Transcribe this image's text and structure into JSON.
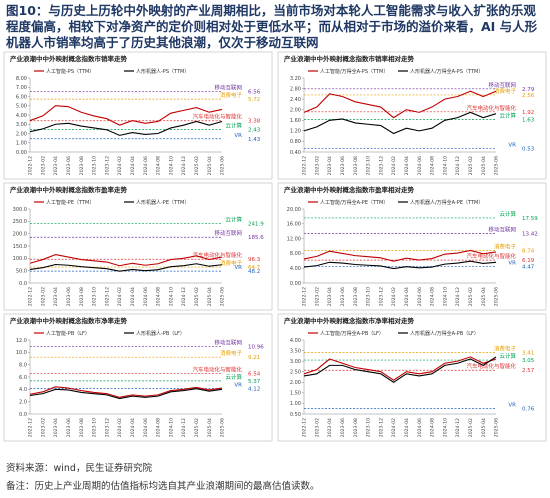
{
  "figure": {
    "title": "图10：与历史上历轮中外映射的产业周期相比，当前市场对本轮人工智能需求与收入扩张的乐观程度偏高，相较下对净资产的定价则相对处于更低水平；而从相对于市场的溢价来看，AI 与人形机器人市销率均高于了历史其他浪潮，仅次于移动互联网",
    "source": "资料来源：wind，民生证券研究院",
    "note": "备注：历史上产业周期的估值指标均选自其产业浪潮期间的最高估值读数。"
  },
  "chart_data": [
    {
      "type": "line",
      "title": "产业浪潮中中外映射概念指数市销率走势",
      "categories": [
        "2022-12",
        "2023-02",
        "2023-04",
        "2023-06",
        "2023-08",
        "2023-10",
        "2023-12",
        "2024-02",
        "2024-04",
        "2024-06",
        "2024-08",
        "2024-10",
        "2024-12",
        "2025-02",
        "2025-04",
        "2025-06"
      ],
      "series": [
        {
          "name": "人工智能-PS（TTM）",
          "color": "#c00000",
          "values": [
            3.4,
            3.9,
            5.0,
            4.9,
            4.3,
            3.9,
            3.6,
            2.9,
            3.4,
            3.1,
            3.3,
            4.2,
            4.5,
            4.8,
            4.3,
            4.6
          ]
        },
        {
          "name": "人形机器人-PS（TTM）",
          "color": "#000000",
          "values": [
            2.2,
            2.5,
            3.0,
            3.1,
            2.8,
            2.6,
            2.4,
            1.8,
            2.1,
            1.9,
            2.0,
            2.6,
            2.9,
            3.3,
            2.9,
            3.3
          ]
        }
      ],
      "ylim": [
        0,
        8
      ],
      "yticks": [
        {
          "value": 0,
          "label": "0.00"
        },
        {
          "value": 1,
          "label": "1.00"
        },
        {
          "value": 2,
          "label": "2.00"
        },
        {
          "value": 3,
          "label": "3.00"
        },
        {
          "value": 4,
          "label": "4.00"
        },
        {
          "value": 5,
          "label": "5.00"
        },
        {
          "value": 6,
          "label": "6.00"
        },
        {
          "value": 7,
          "label": "7.00"
        },
        {
          "value": 8,
          "label": "8.00"
        }
      ],
      "reference_lines": [
        {
          "name": "移动互联网",
          "value": 6.56,
          "color": "#7030a0"
        },
        {
          "name": "消费电子",
          "value": 5.72,
          "color": "#e6a000"
        },
        {
          "name": "汽车电动化与智能化",
          "value": 3.38,
          "color": "#e03030"
        },
        {
          "name": "云计算",
          "value": 2.43,
          "color": "#00a050"
        },
        {
          "name": "VR",
          "value": 1.43,
          "color": "#2060c0"
        }
      ]
    },
    {
      "type": "line",
      "title": "产业浪潮中中外映射概念指数市销率相对走势",
      "categories": [
        "2022-12",
        "2023-02",
        "2023-04",
        "2023-06",
        "2023-08",
        "2023-10",
        "2023-12",
        "2024-02",
        "2024-04",
        "2024-06",
        "2024-08",
        "2024-10",
        "2024-12",
        "2025-02",
        "2025-04",
        "2025-06"
      ],
      "series": [
        {
          "name": "人工智能/万得全A-PS（TTM）",
          "color": "#c00000",
          "values": [
            1.9,
            2.1,
            2.6,
            2.5,
            2.3,
            2.2,
            2.1,
            1.7,
            2.0,
            1.9,
            2.1,
            2.4,
            2.5,
            2.7,
            2.5,
            2.7
          ]
        },
        {
          "name": "人形机器人/万得全A-PS（TTM）",
          "color": "#000000",
          "values": [
            1.2,
            1.35,
            1.6,
            1.65,
            1.5,
            1.45,
            1.4,
            1.1,
            1.3,
            1.2,
            1.3,
            1.6,
            1.7,
            1.9,
            1.7,
            1.85
          ]
        }
      ],
      "ylim": [
        0.4,
        3.2
      ],
      "yticks": [
        {
          "value": 0.4,
          "label": "0.40"
        },
        {
          "value": 0.8,
          "label": "0.80"
        },
        {
          "value": 1.2,
          "label": "1.20"
        },
        {
          "value": 1.6,
          "label": "1.60"
        },
        {
          "value": 2,
          "label": "2.00"
        },
        {
          "value": 2.4,
          "label": "2.40"
        },
        {
          "value": 2.8,
          "label": "2.80"
        },
        {
          "value": 3.2,
          "label": "3.20"
        }
      ],
      "reference_lines": [
        {
          "name": "移动互联网",
          "value": 2.79,
          "color": "#7030a0"
        },
        {
          "name": "消费电子",
          "value": 2.56,
          "color": "#e6a000"
        },
        {
          "name": "汽车电动化与智能化",
          "value": 1.92,
          "color": "#e03030"
        },
        {
          "name": "云计算",
          "value": 1.63,
          "color": "#00a050"
        },
        {
          "name": "VR",
          "value": 0.53,
          "color": "#2060c0"
        }
      ]
    },
    {
      "type": "line",
      "title": "产业浪潮中中外映射概念指数市盈率走势",
      "categories": [
        "2022-12",
        "2023-02",
        "2023-04",
        "2023-06",
        "2023-08",
        "2023-10",
        "2023-12",
        "2024-02",
        "2024-04",
        "2024-06",
        "2024-08",
        "2024-10",
        "2024-12",
        "2025-02",
        "2025-04",
        "2025-06"
      ],
      "series": [
        {
          "name": "人工智能-PE（TTM）",
          "color": "#c00000",
          "values": [
            80,
            95,
            115,
            105,
            95,
            90,
            85,
            70,
            80,
            72,
            78,
            95,
            100,
            110,
            95,
            105
          ]
        },
        {
          "name": "人形机器人-PE（TTM）",
          "color": "#000000",
          "values": [
            55,
            62,
            75,
            72,
            66,
            62,
            58,
            48,
            55,
            50,
            54,
            66,
            70,
            78,
            68,
            74
          ]
        }
      ],
      "ylim": [
        0,
        300
      ],
      "yticks": [
        {
          "value": 0,
          "label": "0.0"
        },
        {
          "value": 50,
          "label": "50.0"
        },
        {
          "value": 100,
          "label": "100.0"
        },
        {
          "value": 150,
          "label": "150.0"
        },
        {
          "value": 200,
          "label": "200.0"
        },
        {
          "value": 250,
          "label": "250.0"
        },
        {
          "value": 300,
          "label": "300.0"
        }
      ],
      "reference_lines": [
        {
          "name": "云计算",
          "value": 241.9,
          "color": "#00a050"
        },
        {
          "name": "移动互联网",
          "value": 185.6,
          "color": "#7030a0"
        },
        {
          "name": "汽车电动化与智能化",
          "value": 96.3,
          "color": "#e03030"
        },
        {
          "name": "消费电子",
          "value": 64.7,
          "color": "#e6a000"
        },
        {
          "name": "VR",
          "value": 48.2,
          "color": "#2060c0"
        }
      ]
    },
    {
      "type": "line",
      "title": "产业浪潮中中外映射概念指数市盈率相对走势",
      "categories": [
        "2022-12",
        "2023-02",
        "2023-04",
        "2023-06",
        "2023-08",
        "2023-10",
        "2023-12",
        "2024-02",
        "2024-04",
        "2024-06",
        "2024-08",
        "2024-10",
        "2024-12",
        "2025-02",
        "2025-04",
        "2025-06"
      ],
      "series": [
        {
          "name": "人工智能/万得全A-PE（TTM）",
          "color": "#c00000",
          "values": [
            6.5,
            7.2,
            8.6,
            8.0,
            7.4,
            7.1,
            6.8,
            5.9,
            6.7,
            6.2,
            6.6,
            7.8,
            8.1,
            8.8,
            7.9,
            8.4
          ]
        },
        {
          "name": "人形机器人/万得全A-PE（TTM）",
          "color": "#000000",
          "values": [
            4.3,
            4.7,
            5.6,
            5.4,
            5.0,
            4.8,
            4.6,
            3.9,
            4.4,
            4.1,
            4.3,
            5.1,
            5.4,
            5.9,
            5.3,
            5.6
          ]
        }
      ],
      "ylim": [
        0,
        20
      ],
      "yticks": [
        {
          "value": 0,
          "label": "0.00"
        },
        {
          "value": 4,
          "label": "4.00"
        },
        {
          "value": 8,
          "label": "8.00"
        },
        {
          "value": 12,
          "label": "12.00"
        },
        {
          "value": 16,
          "label": "16.00"
        },
        {
          "value": 20,
          "label": "20.00"
        }
      ],
      "reference_lines": [
        {
          "name": "云计算",
          "value": 17.59,
          "color": "#00a050"
        },
        {
          "name": "移动互联网",
          "value": 13.42,
          "color": "#7030a0"
        },
        {
          "name": "消费电子",
          "value": 8.74,
          "color": "#e6a000"
        },
        {
          "name": "汽车电动化与智能化",
          "value": 6.19,
          "color": "#e03030"
        },
        {
          "name": "VR",
          "value": 4.47,
          "color": "#2060c0"
        }
      ]
    },
    {
      "type": "line",
      "title": "产业浪潮中中外映射概念指数市净率走势",
      "categories": [
        "2022-12",
        "2023-02",
        "2023-04",
        "2023-06",
        "2023-08",
        "2023-10",
        "2023-12",
        "2024-02",
        "2024-04",
        "2024-06",
        "2024-08",
        "2024-10",
        "2024-12",
        "2025-02",
        "2025-04",
        "2025-06"
      ],
      "series": [
        {
          "name": "人工智能-PB（LF）",
          "color": "#c00000",
          "values": [
            3.2,
            3.6,
            4.4,
            4.2,
            3.8,
            3.5,
            3.3,
            2.7,
            3.1,
            2.9,
            3.1,
            3.8,
            4.0,
            4.3,
            3.9,
            4.2
          ]
        },
        {
          "name": "人形机器人-PB（LF）",
          "color": "#000000",
          "values": [
            3.0,
            3.3,
            4.0,
            3.9,
            3.5,
            3.3,
            3.1,
            2.5,
            2.9,
            2.7,
            2.9,
            3.6,
            3.8,
            4.1,
            3.7,
            4.0
          ]
        }
      ],
      "ylim": [
        0,
        12
      ],
      "yticks": [
        {
          "value": 0,
          "label": "0.0"
        },
        {
          "value": 2,
          "label": "2.0"
        },
        {
          "value": 4,
          "label": "4.0"
        },
        {
          "value": 6,
          "label": "6.0"
        },
        {
          "value": 8,
          "label": "8.0"
        },
        {
          "value": 10,
          "label": "10.0"
        },
        {
          "value": 12,
          "label": "12.0"
        }
      ],
      "reference_lines": [
        {
          "name": "移动互联网",
          "value": 10.96,
          "color": "#7030a0"
        },
        {
          "name": "消费电子",
          "value": 9.21,
          "color": "#e6a000"
        },
        {
          "name": "汽车电动化与智能化",
          "value": 6.54,
          "color": "#e03030"
        },
        {
          "name": "云计算",
          "value": 5.37,
          "color": "#00a050"
        },
        {
          "name": "VR",
          "value": 4.12,
          "color": "#2060c0"
        }
      ]
    },
    {
      "type": "line",
      "title": "产业浪潮中中外映射概念指数市净率相对走势",
      "categories": [
        "2022-12",
        "2023-02",
        "2023-04",
        "2023-06",
        "2023-08",
        "2023-10",
        "2023-12",
        "2024-02",
        "2024-04",
        "2024-06",
        "2024-08",
        "2024-10",
        "2024-12",
        "2025-02",
        "2025-04",
        "2025-06"
      ],
      "series": [
        {
          "name": "人工智能/万得全A-PB（LF）",
          "color": "#c00000",
          "values": [
            2.4,
            2.6,
            3.1,
            2.9,
            2.7,
            2.6,
            2.5,
            2.1,
            2.5,
            2.4,
            2.5,
            2.9,
            3.0,
            3.2,
            2.9,
            3.1
          ]
        },
        {
          "name": "人形机器人/万得全A-PB（LF）",
          "color": "#000000",
          "values": [
            2.3,
            2.4,
            2.8,
            2.8,
            2.6,
            2.5,
            2.4,
            2.0,
            2.4,
            2.3,
            2.4,
            2.8,
            2.9,
            3.1,
            2.8,
            3.2
          ]
        }
      ],
      "ylim": [
        0.5,
        4
      ],
      "yticks": [
        {
          "value": 0.5,
          "label": "0.50"
        },
        {
          "value": 1,
          "label": "1.00"
        },
        {
          "value": 1.5,
          "label": "1.50"
        },
        {
          "value": 2,
          "label": "2.00"
        },
        {
          "value": 2.5,
          "label": "2.50"
        },
        {
          "value": 3,
          "label": "3.00"
        },
        {
          "value": 3.5,
          "label": "3.50"
        },
        {
          "value": 4,
          "label": "4.00"
        }
      ],
      "reference_lines": [
        {
          "name": "消费电子",
          "value": 3.41,
          "color": "#e6a000"
        },
        {
          "name": "云计算",
          "value": 3.05,
          "color": "#00a050"
        },
        {
          "name": "汽车电动化与智能化",
          "value": 2.57,
          "color": "#e03030"
        },
        {
          "name": "VR",
          "value": 0.76,
          "color": "#2060c0"
        }
      ]
    }
  ]
}
